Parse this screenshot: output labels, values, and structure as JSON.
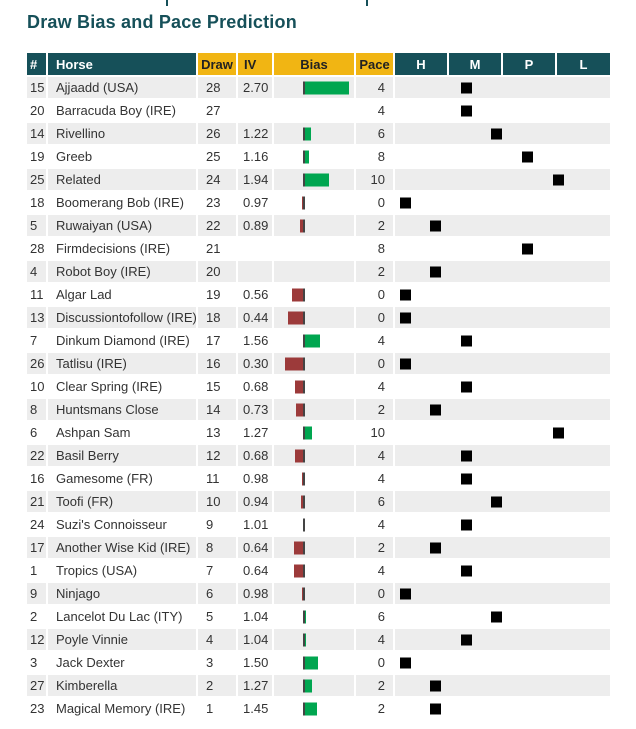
{
  "page": {
    "title": "Draw Bias and Pace Prediction"
  },
  "colors": {
    "teal": "#165059",
    "gold": "#f1b513",
    "green": "#00a650",
    "maroon": "#9c3a3a",
    "marker": "#000000",
    "stripe": "#ededed"
  },
  "table": {
    "columns": [
      "#",
      "Horse",
      "Draw",
      "IV",
      "Bias",
      "Pace",
      "H",
      "M",
      "P",
      "L"
    ],
    "pace_scale": {
      "min": 0,
      "max": 10
    },
    "rows": [
      {
        "num": "15",
        "horse": "Ajjaadd (USA)",
        "draw": "28",
        "iv": "2.70",
        "pace": 4
      },
      {
        "num": "20",
        "horse": "Barracuda Boy (IRE)",
        "draw": "27",
        "iv": "",
        "pace": 4
      },
      {
        "num": "14",
        "horse": "Rivellino",
        "draw": "26",
        "iv": "1.22",
        "pace": 6
      },
      {
        "num": "19",
        "horse": "Greeb",
        "draw": "25",
        "iv": "1.16",
        "pace": 8
      },
      {
        "num": "25",
        "horse": "Related",
        "draw": "24",
        "iv": "1.94",
        "pace": 10
      },
      {
        "num": "18",
        "horse": "Boomerang Bob (IRE)",
        "draw": "23",
        "iv": "0.97",
        "pace": 0
      },
      {
        "num": "5",
        "horse": "Ruwaiyan (USA)",
        "draw": "22",
        "iv": "0.89",
        "pace": 2
      },
      {
        "num": "28",
        "horse": "Firmdecisions (IRE)",
        "draw": "21",
        "iv": "",
        "pace": 8
      },
      {
        "num": "4",
        "horse": "Robot Boy (IRE)",
        "draw": "20",
        "iv": "",
        "pace": 2
      },
      {
        "num": "11",
        "horse": "Algar Lad",
        "draw": "19",
        "iv": "0.56",
        "pace": 0
      },
      {
        "num": "13",
        "horse": "Discussiontofollow (IRE)",
        "draw": "18",
        "iv": "0.44",
        "pace": 0
      },
      {
        "num": "7",
        "horse": "Dinkum Diamond (IRE)",
        "draw": "17",
        "iv": "1.56",
        "pace": 4
      },
      {
        "num": "26",
        "horse": "Tatlisu (IRE)",
        "draw": "16",
        "iv": "0.30",
        "pace": 0
      },
      {
        "num": "10",
        "horse": "Clear Spring (IRE)",
        "draw": "15",
        "iv": "0.68",
        "pace": 4
      },
      {
        "num": "8",
        "horse": "Huntsmans Close",
        "draw": "14",
        "iv": "0.73",
        "pace": 2
      },
      {
        "num": "6",
        "horse": "Ashpan Sam",
        "draw": "13",
        "iv": "1.27",
        "pace": 10
      },
      {
        "num": "22",
        "horse": "Basil Berry",
        "draw": "12",
        "iv": "0.68",
        "pace": 4
      },
      {
        "num": "16",
        "horse": "Gamesome (FR)",
        "draw": "11",
        "iv": "0.98",
        "pace": 4
      },
      {
        "num": "21",
        "horse": "Toofi (FR)",
        "draw": "10",
        "iv": "0.94",
        "pace": 6
      },
      {
        "num": "24",
        "horse": "Suzi's Connoisseur",
        "draw": "9",
        "iv": "1.01",
        "pace": 4
      },
      {
        "num": "17",
        "horse": "Another Wise Kid (IRE)",
        "draw": "8",
        "iv": "0.64",
        "pace": 2
      },
      {
        "num": "1",
        "horse": "Tropics (USA)",
        "draw": "7",
        "iv": "0.64",
        "pace": 4
      },
      {
        "num": "9",
        "horse": "Ninjago",
        "draw": "6",
        "iv": "0.98",
        "pace": 0
      },
      {
        "num": "2",
        "horse": "Lancelot Du Lac (ITY)",
        "draw": "5",
        "iv": "1.04",
        "pace": 6
      },
      {
        "num": "12",
        "horse": "Poyle Vinnie",
        "draw": "4",
        "iv": "1.04",
        "pace": 4
      },
      {
        "num": "3",
        "horse": "Jack Dexter",
        "draw": "3",
        "iv": "1.50",
        "pace": 0
      },
      {
        "num": "27",
        "horse": "Kimberella",
        "draw": "2",
        "iv": "1.27",
        "pace": 2
      },
      {
        "num": "23",
        "horse": "Magical Memory (IRE)",
        "draw": "1",
        "iv": "1.45",
        "pace": 2
      }
    ]
  }
}
